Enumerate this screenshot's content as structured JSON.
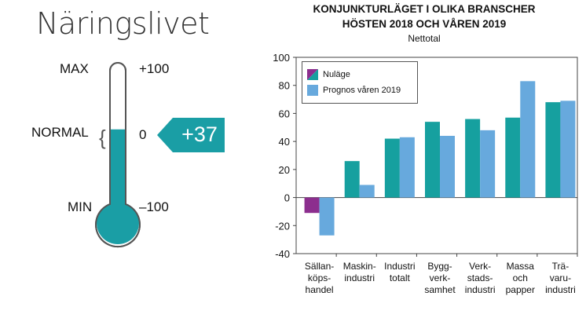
{
  "page": {
    "title": "Näringslivet"
  },
  "thermometer": {
    "max_label": "MAX",
    "normal_label": "NORMAL",
    "min_label": "MIN",
    "max_value": "+100",
    "zero_value": "0",
    "min_value": "–100",
    "brace": "{",
    "reading": "+37",
    "reading_value": 37,
    "scale": [
      -100,
      100
    ],
    "colors": {
      "fill": "#1a9ea5",
      "empty": "#ffffff",
      "outline": "#555555"
    }
  },
  "chart_data": {
    "type": "bar",
    "title_line1": "KONJUNKTURLÄGET I OLIKA BRANSCHER",
    "title_line2": "HÖSTEN 2018 OCH VÅREN 2019",
    "subtitle": "Nettotal",
    "categories": [
      [
        "Sällan-",
        "köps-",
        "handel"
      ],
      [
        "Maskin-",
        "industri"
      ],
      [
        "Industri",
        "totalt"
      ],
      [
        "Bygg-",
        "verk-",
        "samhet"
      ],
      [
        "Verk-",
        "stads-",
        "industri"
      ],
      [
        "Massa",
        "och",
        "papper"
      ],
      [
        "Trä-",
        "varu-",
        "industri"
      ]
    ],
    "series": [
      {
        "name": "Nuläge",
        "values": [
          -11,
          26,
          42,
          54,
          56,
          57,
          68
        ],
        "color": "#16a09f",
        "negative_color": "#8c2e8e"
      },
      {
        "name": "Prognos våren 2019",
        "values": [
          -27,
          9,
          43,
          44,
          48,
          83,
          69
        ],
        "color": "#67a9dd"
      }
    ],
    "ylim": [
      -40,
      100
    ],
    "yticks": [
      "100",
      "80",
      "60",
      "40",
      "20",
      "0",
      "-20",
      "-40"
    ],
    "ytick_values": [
      100,
      80,
      60,
      40,
      20,
      0,
      -20,
      -40
    ],
    "grid": false,
    "legend_position": "top-left"
  }
}
